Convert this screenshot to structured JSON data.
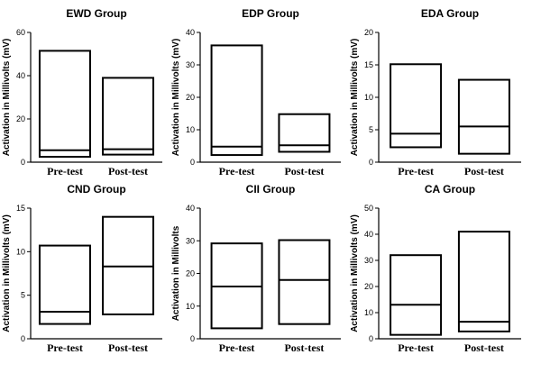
{
  "chart_data": [
    {
      "type": "boxplot",
      "title": "EWD Group",
      "ylabel": "Activation in Millivolts (mV)",
      "ylim": [
        0,
        60
      ],
      "yticks": [
        0,
        20,
        40,
        60
      ],
      "categories": [
        "Pre-test",
        "Post-test"
      ],
      "boxes": [
        {
          "category": "Pre-test",
          "low": 2.5,
          "median": 5.5,
          "high": 51.5
        },
        {
          "category": "Post-test",
          "low": 3.5,
          "median": 6.0,
          "high": 39.0
        }
      ]
    },
    {
      "type": "boxplot",
      "title": "EDP Group",
      "ylabel": "Activation in Millivolts (mV)",
      "ylim": [
        0,
        40
      ],
      "yticks": [
        0,
        10,
        20,
        30,
        40
      ],
      "categories": [
        "Pre-test",
        "Post-test"
      ],
      "boxes": [
        {
          "category": "Pre-test",
          "low": 2.2,
          "median": 4.8,
          "high": 36.0
        },
        {
          "category": "Post-test",
          "low": 3.2,
          "median": 5.2,
          "high": 14.8
        }
      ]
    },
    {
      "type": "boxplot",
      "title": "EDA Group",
      "ylabel": "Activation in Millivolts (mV)",
      "ylim": [
        0,
        20
      ],
      "yticks": [
        0,
        5,
        10,
        15,
        20
      ],
      "categories": [
        "Pre-test",
        "Post-test"
      ],
      "boxes": [
        {
          "category": "Pre-test",
          "low": 2.3,
          "median": 4.4,
          "high": 15.1
        },
        {
          "category": "Post-test",
          "low": 1.3,
          "median": 5.5,
          "high": 12.7
        }
      ]
    },
    {
      "type": "boxplot",
      "title": "CND Group",
      "ylabel": "Activation in Millivolts (mV)",
      "ylim": [
        0,
        15
      ],
      "yticks": [
        0,
        5,
        10,
        15
      ],
      "categories": [
        "Pre-test",
        "Post-test"
      ],
      "boxes": [
        {
          "category": "Pre-test",
          "low": 1.7,
          "median": 3.1,
          "high": 10.7
        },
        {
          "category": "Post-test",
          "low": 2.8,
          "median": 8.3,
          "high": 14.0
        }
      ]
    },
    {
      "type": "boxplot",
      "title": "CII Group",
      "ylabel": "Activation in Millivolts",
      "ylim": [
        0,
        40
      ],
      "yticks": [
        0,
        10,
        20,
        30,
        40
      ],
      "categories": [
        "Pre-test",
        "Post-test"
      ],
      "boxes": [
        {
          "category": "Pre-test",
          "low": 3.2,
          "median": 16.0,
          "high": 29.2
        },
        {
          "category": "Post-test",
          "low": 4.5,
          "median": 18.0,
          "high": 30.2
        }
      ]
    },
    {
      "type": "boxplot",
      "title": "CA Group",
      "ylabel": "Activation in Millivolts (mV)",
      "ylim": [
        0,
        50
      ],
      "yticks": [
        0,
        10,
        20,
        30,
        40,
        50
      ],
      "categories": [
        "Pre-test",
        "Post-test"
      ],
      "boxes": [
        {
          "category": "Pre-test",
          "low": 1.5,
          "median": 13.0,
          "high": 32.0
        },
        {
          "category": "Post-test",
          "low": 2.8,
          "median": 6.5,
          "high": 41.0
        }
      ]
    }
  ]
}
